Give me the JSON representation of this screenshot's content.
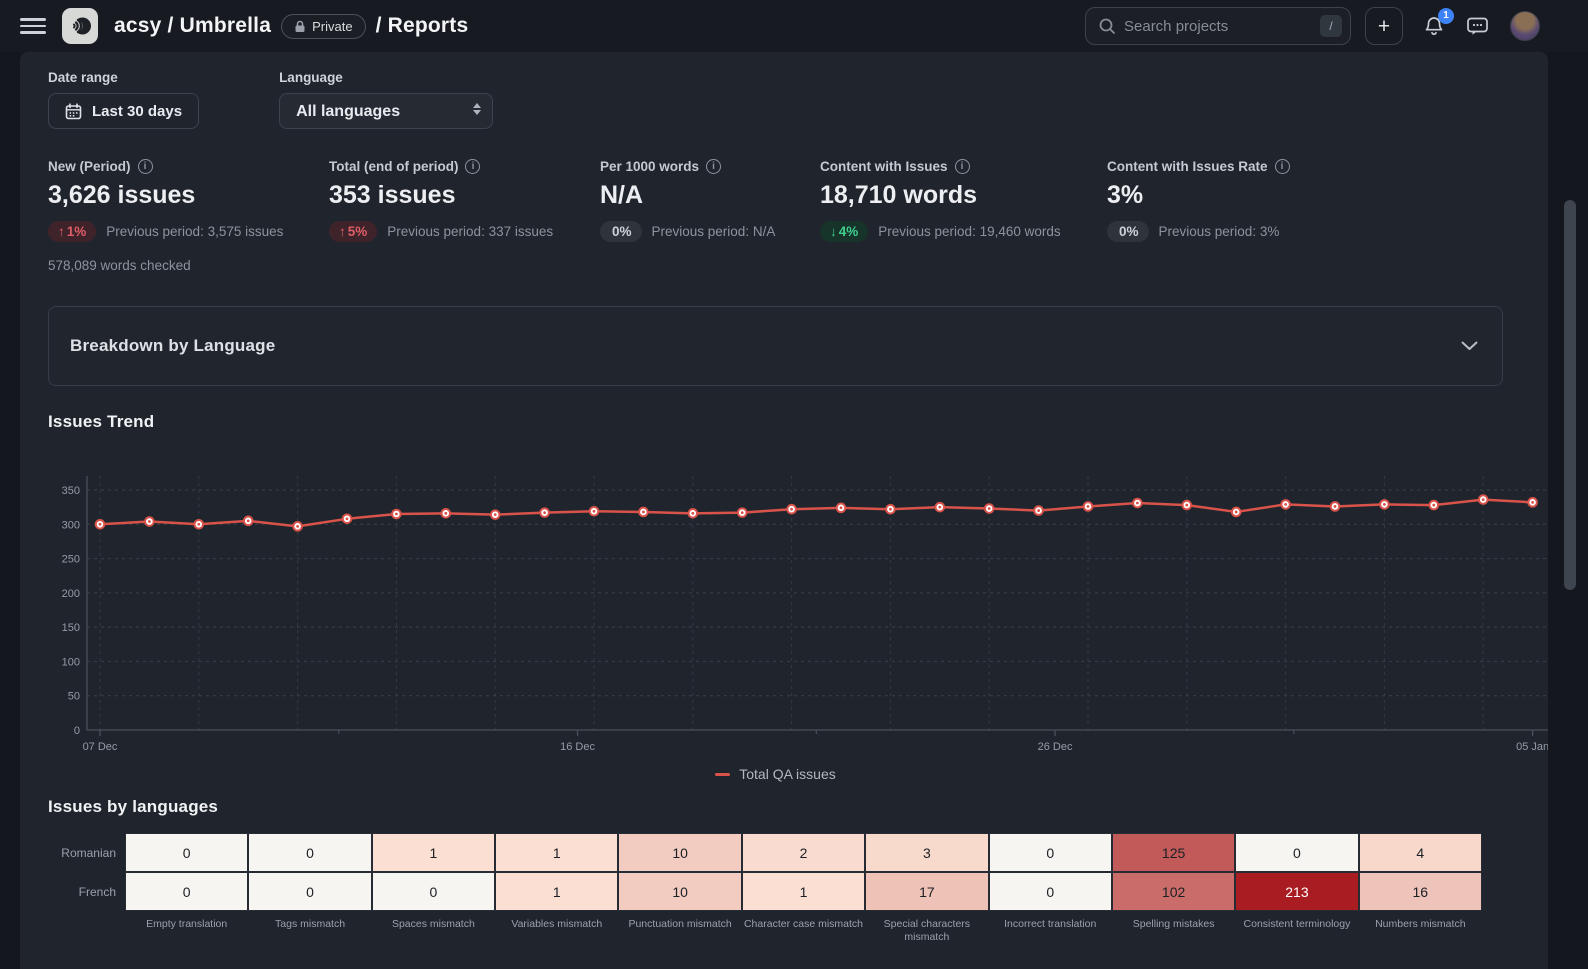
{
  "header": {
    "breadcrumb_project": "acsy / Umbrella",
    "privacy_badge": "Private",
    "breadcrumb_page": "/ Reports",
    "search_placeholder": "Search projects",
    "search_shortcut": "/",
    "add_button": "+",
    "notification_count": "1"
  },
  "icons": {
    "info": "i"
  },
  "filters": {
    "date_range_label": "Date range",
    "date_range_value": "Last 30 days",
    "language_label": "Language",
    "language_value": "All languages"
  },
  "kpis": [
    {
      "label": "New (Period)",
      "value": "3,626 issues",
      "delta": "1%",
      "delta_dir": "up",
      "delta_tone": "bad",
      "previous": "Previous period: 3,575 issues",
      "footnote": "578,089 words checked"
    },
    {
      "label": "Total (end of period)",
      "value": "353 issues",
      "delta": "5%",
      "delta_dir": "up",
      "delta_tone": "bad",
      "previous": "Previous period: 337 issues"
    },
    {
      "label": "Per 1000 words",
      "value": "N/A",
      "delta": "0%",
      "delta_dir": "flat",
      "delta_tone": "neutral",
      "previous": "Previous period: N/A"
    },
    {
      "label": "Content with Issues",
      "value": "18,710 words",
      "delta": "4%",
      "delta_dir": "down",
      "delta_tone": "good",
      "previous": "Previous period: 19,460 words"
    },
    {
      "label": "Content with Issues Rate",
      "value": "3%",
      "delta": "0%",
      "delta_dir": "flat",
      "delta_tone": "neutral",
      "previous": "Previous period: 3%"
    }
  ],
  "breakdown_panel": {
    "title": "Breakdown by Language"
  },
  "chart_data": [
    {
      "type": "line",
      "title": "Issues Trend",
      "x": [
        "07 Dec",
        "08 Dec",
        "09 Dec",
        "10 Dec",
        "11 Dec",
        "12 Dec",
        "13 Dec",
        "14 Dec",
        "15 Dec",
        "16 Dec",
        "17 Dec",
        "18 Dec",
        "19 Dec",
        "20 Dec",
        "21 Dec",
        "22 Dec",
        "23 Dec",
        "24 Dec",
        "25 Dec",
        "26 Dec",
        "27 Dec",
        "28 Dec",
        "29 Dec",
        "30 Dec",
        "31 Dec",
        "01 Jan",
        "02 Jan",
        "03 Jan",
        "04 Jan",
        "05 Jan"
      ],
      "x_tick_labels": [
        "07 Dec",
        "16 Dec",
        "26 Dec",
        "05 Jan"
      ],
      "series": [
        {
          "name": "Total QA issues",
          "color": "#d9534a",
          "values": [
            300,
            304,
            300,
            305,
            297,
            308,
            315,
            316,
            314,
            317,
            319,
            318,
            316,
            317,
            322,
            324,
            322,
            325,
            323,
            320,
            326,
            331,
            328,
            318,
            329,
            326,
            329,
            328,
            336,
            332
          ]
        }
      ],
      "ylim": [
        0,
        380
      ],
      "yticks": [
        0,
        50,
        100,
        150,
        200,
        250,
        300,
        350
      ],
      "grid": true,
      "legend_position": "bottom"
    },
    {
      "type": "heatmap",
      "title": "Issues by languages",
      "rows": [
        "Romanian",
        "French"
      ],
      "columns": [
        "Empty translation",
        "Tags mismatch",
        "Spaces mismatch",
        "Variables mismatch",
        "Punctuation mismatch",
        "Character case mismatch",
        "Special characters mismatch",
        "Incorrect translation",
        "Spelling mistakes",
        "Consistent terminology",
        "Numbers mismatch"
      ],
      "values": [
        [
          0,
          0,
          1,
          1,
          10,
          2,
          3,
          0,
          125,
          0,
          4
        ],
        [
          0,
          0,
          0,
          1,
          10,
          1,
          17,
          0,
          102,
          213,
          16
        ]
      ],
      "color_scale": {
        "zero": "#f6f5f2",
        "low": "#fce4d6",
        "high": "#a81c22",
        "dark_text": "#1c1f24",
        "light_text": "#ffffff"
      }
    }
  ]
}
